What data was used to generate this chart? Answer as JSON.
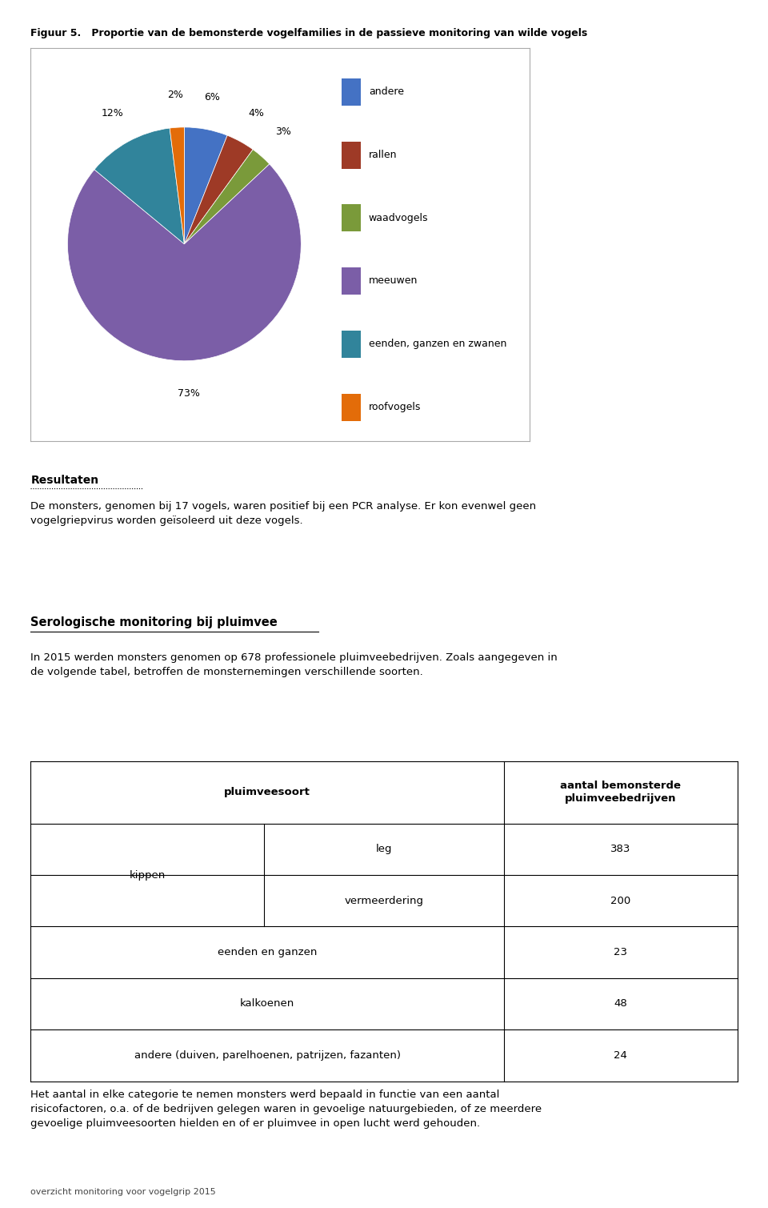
{
  "fig_title": "Figuur 5.   Proportie van de bemonsterde vogelfamilies in de passieve monitoring van wilde vogels",
  "pie_labels": [
    "andere",
    "rallen",
    "waadvogels",
    "meeuwen",
    "eenden, ganzen en zwanen",
    "roofvogels"
  ],
  "pie_values": [
    6,
    4,
    3,
    73,
    12,
    2
  ],
  "pie_colors": [
    "#4472C4",
    "#9E3A26",
    "#7A9A3A",
    "#7B5EA7",
    "#31849B",
    "#E36C09"
  ],
  "pie_pct_labels": [
    "6%",
    "4%",
    "3%",
    "73%",
    "12%",
    "2%"
  ],
  "legend_labels": [
    "andere",
    "rallen",
    "waadvogels",
    "meeuwen",
    "eenden, ganzen en zwanen",
    "roofvogels"
  ],
  "legend_colors": [
    "#4472C4",
    "#9E3A26",
    "#7A9A3A",
    "#7B5EA7",
    "#31849B",
    "#E36C09"
  ],
  "resultaten_title": "Resultaten",
  "resultaten_text": "De monsters, genomen bij 17 vogels, waren positief bij een PCR analyse. Er kon evenwel geen\nvogelgriepvirus worden geïsoleerd uit deze vogels.",
  "serologische_title": "Serologische monitoring bij pluimvee",
  "serologische_intro": "In 2015 werden monsters genomen op 678 professionele pluimveebedrijven. Zoals aangegeven in\nde volgende tabel, betroffen de monsternemingen verschillende soorten.",
  "table_col1_header": "pluimveesoort",
  "table_col2_header": "aantal bemonsterde\npluimveebedrijven",
  "footer_text": "Het aantal in elke categorie te nemen monsters werd bepaald in functie van een aantal\nrisicofactoren, o.a. of de bedrijven gelegen waren in gevoelige natuurgebieden, of ze meerdere\ngevoelige pluimveesoorten hielden en of er pluimvee in open lucht werd gehouden.",
  "page_footer": "overzicht monitoring voor vogelgrip 2015",
  "background_color": "#FFFFFF"
}
